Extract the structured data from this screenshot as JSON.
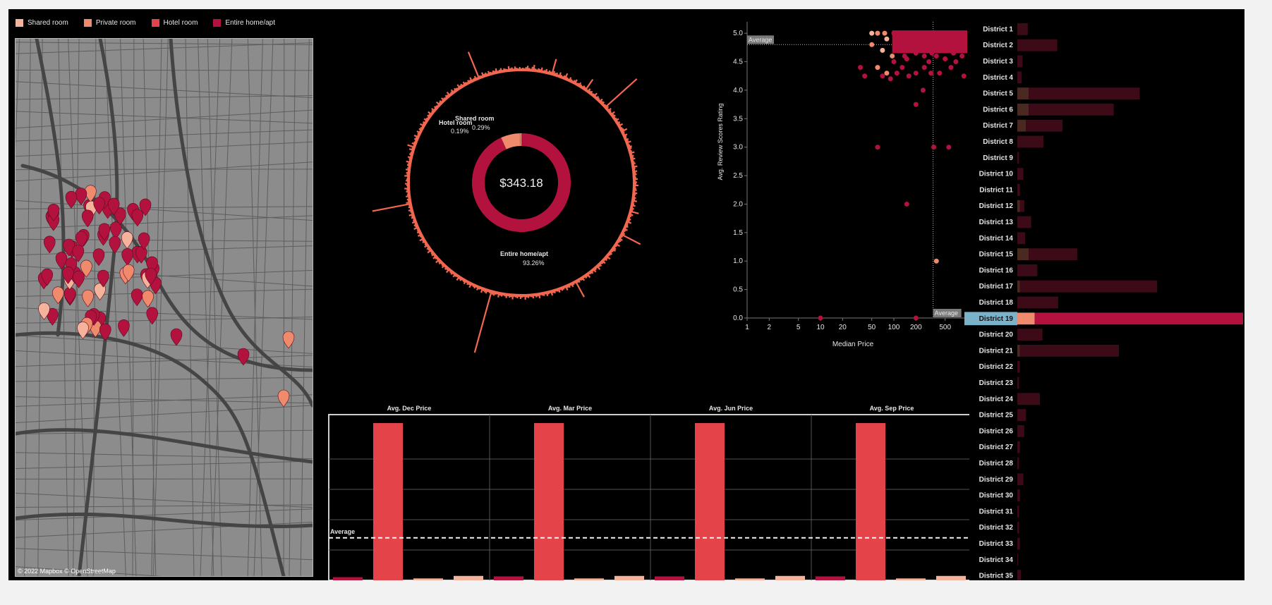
{
  "legend": {
    "items": [
      {
        "label": "Shared room",
        "color": "#f6b39b"
      },
      {
        "label": "Private room",
        "color": "#f08a6c"
      },
      {
        "label": "Hotel room",
        "color": "#e4434a"
      },
      {
        "label": "Entire home/apt",
        "color": "#b4123e"
      }
    ]
  },
  "map": {
    "attribution": "© 2022 Mapbox © OpenStreetMap",
    "icons": [
      "map-pin-icon"
    ]
  },
  "donut": {
    "center_label": "$343.18",
    "slices": [
      {
        "name": "Entire home/apt",
        "pct_label": "93.26%",
        "value": 93.26,
        "color": "#b4123e"
      },
      {
        "name": "Private room",
        "pct_label": "",
        "value": 6.26,
        "color": "#f08a6c"
      },
      {
        "name": "Hotel room",
        "pct_label": "0.19%",
        "value": 0.19,
        "color": "#e4434a"
      },
      {
        "name": "Shared room",
        "pct_label": "0.29%",
        "value": 0.29,
        "color": "#f6b39b"
      }
    ]
  },
  "chart_data": [
    {
      "type": "scatter",
      "xlabel": "Median Price",
      "ylabel": "Avg. Review Scores Rating",
      "x_scale": "log",
      "xlim": [
        1,
        1000
      ],
      "ylim": [
        0,
        5.2
      ],
      "xticks": [
        "1",
        "2",
        "5",
        "10",
        "20",
        "50",
        "100",
        "200",
        "500"
      ],
      "yticks": [
        "0.0",
        "0.5",
        "1.0",
        "1.5",
        "2.0",
        "2.5",
        "3.0",
        "3.5",
        "4.0",
        "4.5",
        "5.0"
      ],
      "reference_lines": [
        {
          "axis": "y",
          "label": "Average",
          "value": 4.8
        },
        {
          "axis": "x",
          "label": "Average",
          "value": 343
        }
      ],
      "points": [
        {
          "x": 10,
          "y": 0.0,
          "color": "#b4123e"
        },
        {
          "x": 200,
          "y": 0.0,
          "color": "#b4123e"
        },
        {
          "x": 380,
          "y": 1.0,
          "color": "#f08a6c"
        },
        {
          "x": 150,
          "y": 2.0,
          "color": "#b4123e"
        },
        {
          "x": 60,
          "y": 3.0,
          "color": "#b4123e"
        },
        {
          "x": 350,
          "y": 3.0,
          "color": "#b4123e"
        },
        {
          "x": 560,
          "y": 3.0,
          "color": "#b4123e"
        },
        {
          "x": 200,
          "y": 3.75,
          "color": "#b4123e"
        },
        {
          "x": 250,
          "y": 4.0,
          "color": "#b4123e"
        },
        {
          "x": 40,
          "y": 4.25,
          "color": "#b4123e"
        },
        {
          "x": 35,
          "y": 4.4,
          "color": "#b4123e"
        },
        {
          "x": 70,
          "y": 4.25,
          "color": "#b4123e"
        },
        {
          "x": 80,
          "y": 4.3,
          "color": "#f08a6c"
        },
        {
          "x": 60,
          "y": 4.4,
          "color": "#f08a6c"
        },
        {
          "x": 90,
          "y": 4.2,
          "color": "#b4123e"
        },
        {
          "x": 110,
          "y": 4.3,
          "color": "#b4123e"
        },
        {
          "x": 130,
          "y": 4.4,
          "color": "#b4123e"
        },
        {
          "x": 160,
          "y": 4.25,
          "color": "#b4123e"
        },
        {
          "x": 200,
          "y": 4.3,
          "color": "#b4123e"
        },
        {
          "x": 260,
          "y": 4.4,
          "color": "#b4123e"
        },
        {
          "x": 320,
          "y": 4.3,
          "color": "#b4123e"
        },
        {
          "x": 420,
          "y": 4.3,
          "color": "#b4123e"
        },
        {
          "x": 600,
          "y": 4.4,
          "color": "#b4123e"
        },
        {
          "x": 900,
          "y": 4.25,
          "color": "#b4123e"
        },
        {
          "x": 100,
          "y": 4.5,
          "color": "#b4123e"
        },
        {
          "x": 150,
          "y": 4.55,
          "color": "#b4123e"
        },
        {
          "x": 300,
          "y": 4.5,
          "color": "#b4123e"
        },
        {
          "x": 500,
          "y": 4.55,
          "color": "#b4123e"
        },
        {
          "x": 700,
          "y": 4.5,
          "color": "#b4123e"
        },
        {
          "x": 95,
          "y": 4.6,
          "color": "#f08a6c"
        },
        {
          "x": 70,
          "y": 4.7,
          "color": "#f6b39b"
        },
        {
          "x": 50,
          "y": 4.8,
          "color": "#f08a6c"
        },
        {
          "x": 80,
          "y": 4.9,
          "color": "#f6b39b"
        },
        {
          "x": 60,
          "y": 5.0,
          "color": "#f08a6c"
        },
        {
          "x": 50,
          "y": 5.0,
          "color": "#f6b39b"
        },
        {
          "x": 75,
          "y": 5.0,
          "color": "#f08a6c"
        },
        {
          "x": 100,
          "y": 5.0,
          "color": "#b4123e"
        },
        {
          "x": 130,
          "y": 4.95,
          "color": "#b4123e"
        },
        {
          "x": 180,
          "y": 5.0,
          "color": "#b4123e"
        },
        {
          "x": 250,
          "y": 4.95,
          "color": "#b4123e"
        },
        {
          "x": 350,
          "y": 5.0,
          "color": "#b4123e"
        },
        {
          "x": 450,
          "y": 4.95,
          "color": "#b4123e"
        },
        {
          "x": 600,
          "y": 5.0,
          "color": "#b4123e"
        },
        {
          "x": 800,
          "y": 4.95,
          "color": "#b4123e"
        },
        {
          "x": 120,
          "y": 4.85,
          "color": "#b4123e"
        },
        {
          "x": 170,
          "y": 4.8,
          "color": "#b4123e"
        },
        {
          "x": 230,
          "y": 4.85,
          "color": "#b4123e"
        },
        {
          "x": 300,
          "y": 4.75,
          "color": "#b4123e"
        },
        {
          "x": 400,
          "y": 4.85,
          "color": "#b4123e"
        },
        {
          "x": 550,
          "y": 4.8,
          "color": "#b4123e"
        },
        {
          "x": 750,
          "y": 4.85,
          "color": "#b4123e"
        },
        {
          "x": 110,
          "y": 4.7,
          "color": "#b4123e"
        },
        {
          "x": 200,
          "y": 4.65,
          "color": "#b4123e"
        },
        {
          "x": 330,
          "y": 4.65,
          "color": "#b4123e"
        },
        {
          "x": 470,
          "y": 4.7,
          "color": "#b4123e"
        },
        {
          "x": 650,
          "y": 4.65,
          "color": "#b4123e"
        },
        {
          "x": 920,
          "y": 4.75,
          "color": "#b4123e"
        },
        {
          "x": 140,
          "y": 4.6,
          "color": "#b4123e"
        },
        {
          "x": 260,
          "y": 4.6,
          "color": "#b4123e"
        },
        {
          "x": 380,
          "y": 4.6,
          "color": "#b4123e"
        },
        {
          "x": 850,
          "y": 4.6,
          "color": "#b4123e"
        }
      ]
    },
    {
      "type": "bar",
      "panels": [
        "Avg. Dec Price",
        "Avg. Mar Price",
        "Avg. Jun Price",
        "Avg. Sep Price"
      ],
      "categories": [
        "Entire home/apt",
        "Hotel room",
        "Private room",
        "Shared room"
      ],
      "series_colors": [
        "#b4123e",
        "#e4434a",
        "#f6b39b",
        "#f6b39b"
      ],
      "ylim": [
        0,
        1000
      ],
      "reference_lines": [
        {
          "label": "Average",
          "value": 270
        }
      ],
      "values": [
        [
          20,
          1000,
          12,
          28
        ],
        [
          25,
          1000,
          12,
          28
        ],
        [
          25,
          1000,
          12,
          28
        ],
        [
          25,
          1000,
          12,
          28
        ]
      ]
    },
    {
      "type": "bar",
      "orientation": "horizontal",
      "categories": [
        "District 1",
        "District 2",
        "District 3",
        "District 4",
        "District 5",
        "District 6",
        "District 7",
        "District 8",
        "District 9",
        "District 10",
        "District 11",
        "District 12",
        "District 13",
        "District 14",
        "District 15",
        "District 16",
        "District 17",
        "District 18",
        "District 19",
        "District 20",
        "District 21",
        "District 22",
        "District 23",
        "District 24",
        "District 25",
        "District 26",
        "District 27",
        "District 28",
        "District 29",
        "District 30",
        "District 31",
        "District 32",
        "District 33",
        "District 34",
        "District 35"
      ],
      "highlighted": "District 19",
      "series": [
        {
          "name": "Private room",
          "values": [
            0,
            0,
            0,
            0,
            13,
            13,
            10,
            0,
            0,
            0,
            0,
            3,
            0,
            0,
            13,
            0,
            3,
            0,
            20,
            0,
            3,
            0,
            0,
            0,
            0,
            0,
            0,
            0,
            0,
            0,
            0,
            0,
            0,
            0,
            0
          ]
        },
        {
          "name": "Entire home/apt",
          "values": [
            12,
            46,
            6,
            5,
            128,
            98,
            42,
            30,
            2,
            7,
            3,
            5,
            16,
            9,
            56,
            23,
            158,
            47,
            240,
            29,
            114,
            3,
            2,
            26,
            10,
            8,
            3,
            2,
            7,
            3,
            2,
            2,
            3,
            1,
            4
          ]
        }
      ],
      "xlim": [
        0,
        260
      ]
    }
  ],
  "radial": {
    "spike_values": [
      2,
      3,
      2,
      4,
      6,
      3,
      2,
      5,
      8,
      3,
      2,
      4,
      3,
      6,
      2,
      3,
      5,
      2,
      4,
      3,
      22,
      5,
      3,
      4,
      2,
      6,
      3,
      2,
      4,
      8,
      3,
      2,
      5,
      3,
      2,
      4,
      6,
      2,
      3,
      5,
      3,
      2,
      4,
      3,
      18,
      2,
      5,
      3,
      4,
      2,
      3,
      6,
      2,
      4,
      3,
      2,
      5,
      3,
      4,
      2,
      3,
      60,
      4,
      2,
      5,
      3,
      2,
      6,
      3,
      4,
      2,
      3,
      5,
      2,
      4,
      3,
      6,
      2,
      3,
      4,
      8,
      3,
      2,
      5,
      3,
      2,
      4,
      3,
      6,
      2,
      3,
      5,
      4,
      2,
      3,
      6,
      2,
      4,
      3,
      5,
      2,
      3,
      4,
      2,
      6,
      3,
      2,
      5,
      3,
      4,
      2,
      3,
      5,
      2,
      4,
      3,
      6,
      2,
      3,
      4,
      2,
      5,
      3,
      2,
      4,
      3,
      6,
      2,
      3,
      5,
      2,
      4,
      3,
      12,
      2,
      5,
      3,
      2,
      4,
      3,
      6,
      2,
      3,
      4,
      2,
      5,
      3,
      2,
      4,
      30,
      3,
      2,
      5,
      4,
      3,
      2,
      6,
      3,
      2,
      4,
      5,
      3,
      2,
      4,
      3,
      2,
      6,
      3,
      4,
      2,
      5,
      3,
      2,
      4,
      3,
      6,
      2,
      3,
      5,
      2,
      4,
      3,
      2,
      6,
      3,
      4,
      2,
      5,
      3,
      2,
      4,
      3,
      25,
      2,
      3,
      5,
      2,
      4,
      3,
      6,
      2,
      3,
      4,
      2,
      5,
      3,
      2,
      4,
      3,
      6,
      2,
      3,
      5,
      2,
      4,
      3,
      2,
      6,
      3,
      4,
      2,
      5,
      3,
      2,
      4,
      3,
      6,
      2,
      3,
      5,
      2,
      4,
      3,
      2,
      6,
      3,
      4,
      2,
      5,
      3,
      2,
      4,
      3,
      6,
      2,
      3,
      5,
      4,
      90,
      3,
      2,
      5,
      4,
      3,
      6,
      2,
      3,
      5,
      2,
      4,
      3,
      2,
      6,
      3,
      4,
      2,
      5,
      3,
      2,
      4,
      3,
      6,
      2,
      3,
      5,
      2,
      4,
      3,
      2,
      6,
      3,
      4,
      2,
      5,
      3,
      2,
      4,
      3,
      6,
      2,
      3,
      5,
      2,
      4,
      3,
      2,
      6,
      3,
      4,
      2,
      5,
      3,
      2,
      4,
      3,
      6,
      2,
      3,
      5,
      2,
      4,
      3,
      2,
      6,
      3,
      4,
      2,
      5,
      3,
      2,
      4,
      3,
      6,
      2,
      3,
      5,
      2,
      4,
      3,
      55,
      6,
      3,
      4,
      2,
      5,
      3,
      2,
      4,
      3,
      6,
      2,
      3,
      5,
      2,
      4,
      3,
      2,
      6,
      3,
      4,
      2,
      5,
      3,
      2,
      4,
      3,
      6,
      2,
      3,
      5,
      2,
      4,
      3,
      2,
      6,
      3,
      10,
      2,
      5,
      3,
      2,
      4,
      3,
      6,
      2,
      3,
      5,
      2,
      4,
      3,
      2,
      6,
      3,
      4,
      2,
      5,
      3,
      2,
      4,
      3,
      6,
      2,
      3,
      5,
      2,
      4,
      3,
      2,
      6,
      3,
      4,
      2,
      5,
      3,
      2,
      4,
      3,
      6,
      2,
      3,
      5,
      2,
      4,
      3,
      2,
      6,
      3,
      4,
      2,
      5,
      3,
      2,
      4,
      3,
      6,
      2,
      3,
      5,
      2,
      40,
      3,
      2,
      6,
      3,
      4,
      2,
      5,
      3,
      2,
      4,
      3,
      6,
      2,
      3,
      5,
      2,
      4,
      3,
      2,
      6,
      3,
      4,
      2,
      5,
      3,
      2,
      4
    ]
  }
}
